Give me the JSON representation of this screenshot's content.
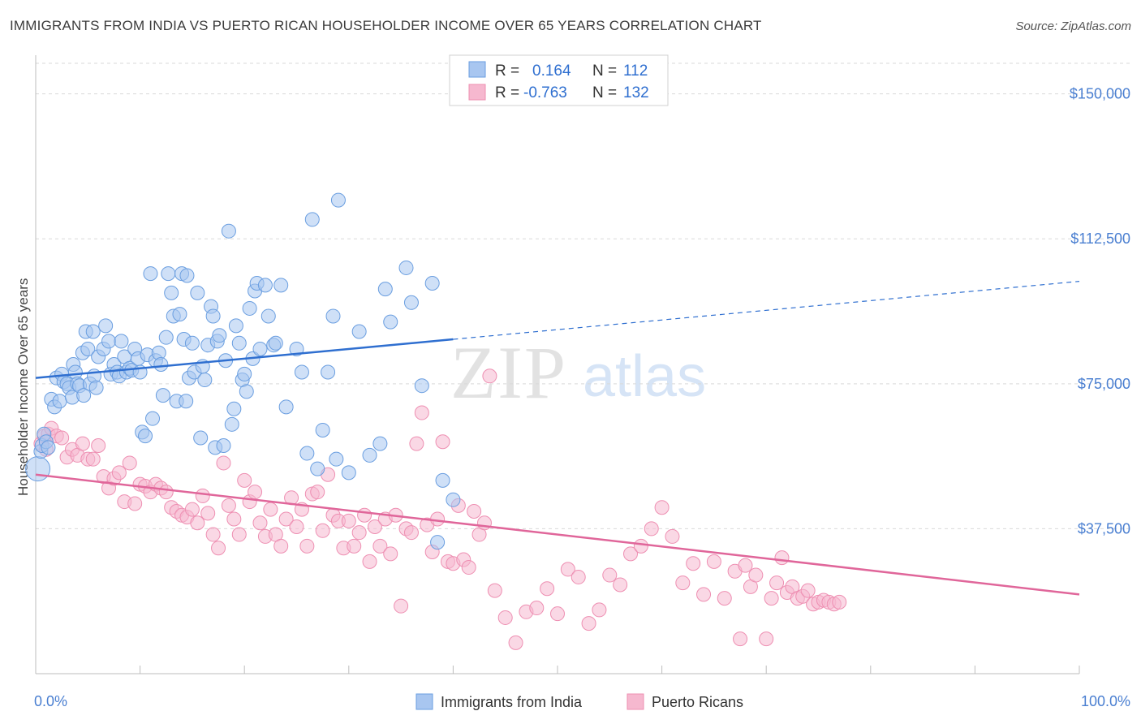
{
  "title": "IMMIGRANTS FROM INDIA VS PUERTO RICAN HOUSEHOLDER INCOME OVER 65 YEARS CORRELATION CHART",
  "source": "Source: ZipAtlas.com",
  "watermark": {
    "zip": "ZIP",
    "atlas": "atlas"
  },
  "legend_top": {
    "rows": [
      {
        "r_label": "R =",
        "r_value": "0.164",
        "n_label": "N =",
        "n_value": "112"
      },
      {
        "r_label": "R =",
        "r_value": "-0.763",
        "n_label": "N =",
        "n_value": "132"
      }
    ]
  },
  "legend_bottom": [
    "Immigrants from India",
    "Puerto Ricans"
  ],
  "colors": {
    "india_fill": "#a8c6f0",
    "india_stroke": "#6a9ee0",
    "india_line": "#2f6fd0",
    "pr_fill": "#f6b8cf",
    "pr_stroke": "#ee8fb2",
    "pr_line": "#e0669a",
    "tick_text": "#4a7fd1",
    "grid": "#d9d9d9"
  },
  "chart_data": {
    "type": "scatter",
    "title": "IMMIGRANTS FROM INDIA VS PUERTO RICAN HOUSEHOLDER INCOME OVER 65 YEARS CORRELATION CHART",
    "xlabel": "",
    "ylabel": "Householder Income Over 65 years",
    "xlim": [
      0,
      100
    ],
    "ylim": [
      0,
      160000
    ],
    "x_tick_labels": [
      "0.0%",
      "100.0%"
    ],
    "y_ticks": [
      37500,
      75000,
      112500,
      150000
    ],
    "y_tick_labels": [
      "$37,500",
      "$75,000",
      "$112,500",
      "$150,000"
    ],
    "grid": true,
    "legend_position": "top-center",
    "series": [
      {
        "name": "Immigrants from India",
        "stats": {
          "R": 0.164,
          "N": 112
        },
        "trend": {
          "x0": 0,
          "y0": 76500,
          "x1": 40,
          "y1": 86500,
          "dashed_to_x": 100,
          "dashed_to_y": 101500
        },
        "points": [
          [
            0.2,
            53000
          ],
          [
            0.5,
            57500
          ],
          [
            0.6,
            59000
          ],
          [
            0.8,
            62000
          ],
          [
            1.0,
            60000
          ],
          [
            1.2,
            58500
          ],
          [
            1.5,
            71000
          ],
          [
            1.8,
            69000
          ],
          [
            2.0,
            76500
          ],
          [
            2.3,
            70500
          ],
          [
            2.5,
            77500
          ],
          [
            2.7,
            75500
          ],
          [
            3.0,
            75000
          ],
          [
            3.2,
            74000
          ],
          [
            3.5,
            71500
          ],
          [
            3.6,
            80000
          ],
          [
            3.8,
            78000
          ],
          [
            4.0,
            75000
          ],
          [
            4.2,
            74500
          ],
          [
            4.5,
            83000
          ],
          [
            4.6,
            72000
          ],
          [
            4.8,
            88500
          ],
          [
            5.0,
            84000
          ],
          [
            5.2,
            75000
          ],
          [
            5.5,
            88500
          ],
          [
            5.6,
            77000
          ],
          [
            5.8,
            74000
          ],
          [
            6.0,
            82000
          ],
          [
            6.5,
            84000
          ],
          [
            6.7,
            90000
          ],
          [
            7.0,
            86000
          ],
          [
            7.2,
            77500
          ],
          [
            7.5,
            80000
          ],
          [
            7.8,
            78000
          ],
          [
            8.0,
            77000
          ],
          [
            8.2,
            86000
          ],
          [
            8.5,
            82000
          ],
          [
            8.7,
            78000
          ],
          [
            9.0,
            79000
          ],
          [
            9.2,
            78500
          ],
          [
            9.5,
            84000
          ],
          [
            9.8,
            81500
          ],
          [
            10.0,
            78000
          ],
          [
            10.2,
            62500
          ],
          [
            10.5,
            61500
          ],
          [
            10.7,
            82500
          ],
          [
            11.0,
            103500
          ],
          [
            11.2,
            66000
          ],
          [
            11.5,
            81000
          ],
          [
            11.8,
            83000
          ],
          [
            12.0,
            80000
          ],
          [
            12.2,
            72000
          ],
          [
            12.5,
            87000
          ],
          [
            12.7,
            103500
          ],
          [
            13.0,
            98500
          ],
          [
            13.2,
            92500
          ],
          [
            13.5,
            70500
          ],
          [
            13.8,
            93000
          ],
          [
            14.0,
            103500
          ],
          [
            14.2,
            86500
          ],
          [
            14.4,
            70500
          ],
          [
            14.5,
            103000
          ],
          [
            14.7,
            76500
          ],
          [
            15.0,
            85500
          ],
          [
            15.2,
            78000
          ],
          [
            15.5,
            98500
          ],
          [
            15.8,
            61000
          ],
          [
            16.0,
            79500
          ],
          [
            16.2,
            76000
          ],
          [
            16.5,
            85000
          ],
          [
            16.8,
            95000
          ],
          [
            17.0,
            92500
          ],
          [
            17.2,
            58500
          ],
          [
            17.4,
            86000
          ],
          [
            17.6,
            87500
          ],
          [
            18.0,
            59000
          ],
          [
            18.2,
            81000
          ],
          [
            18.5,
            114500
          ],
          [
            18.8,
            64500
          ],
          [
            19.0,
            68500
          ],
          [
            19.2,
            90000
          ],
          [
            19.5,
            85500
          ],
          [
            19.8,
            76000
          ],
          [
            20.0,
            77500
          ],
          [
            20.2,
            73000
          ],
          [
            20.5,
            94500
          ],
          [
            20.8,
            81500
          ],
          [
            21.0,
            99000
          ],
          [
            21.2,
            101000
          ],
          [
            21.5,
            84000
          ],
          [
            22.0,
            100500
          ],
          [
            22.3,
            92500
          ],
          [
            22.8,
            85000
          ],
          [
            23.0,
            85500
          ],
          [
            23.5,
            100500
          ],
          [
            24.0,
            69000
          ],
          [
            25.0,
            84000
          ],
          [
            25.5,
            78000
          ],
          [
            26.0,
            57000
          ],
          [
            26.5,
            117500
          ],
          [
            27.0,
            53000
          ],
          [
            27.5,
            63000
          ],
          [
            28.0,
            78000
          ],
          [
            28.5,
            92500
          ],
          [
            28.8,
            55500
          ],
          [
            29.0,
            122500
          ],
          [
            30.0,
            52000
          ],
          [
            31.0,
            88500
          ],
          [
            32.0,
            56500
          ],
          [
            33.0,
            59500
          ],
          [
            33.5,
            99500
          ],
          [
            34.0,
            91000
          ],
          [
            35.5,
            105000
          ],
          [
            36.0,
            96000
          ],
          [
            37.0,
            74500
          ],
          [
            38.0,
            101000
          ],
          [
            39.0,
            50000
          ],
          [
            40.0,
            45000
          ],
          [
            38.5,
            34000
          ]
        ]
      },
      {
        "name": "Puerto Ricans",
        "stats": {
          "R": -0.763,
          "N": 132
        },
        "trend": {
          "x0": 0,
          "y0": 51500,
          "x1": 100,
          "y1": 20500
        },
        "points": [
          [
            0.5,
            59500
          ],
          [
            0.8,
            61500
          ],
          [
            1.0,
            58000
          ],
          [
            1.2,
            62000
          ],
          [
            1.5,
            63500
          ],
          [
            2.0,
            61500
          ],
          [
            2.5,
            61000
          ],
          [
            3.0,
            56000
          ],
          [
            3.5,
            58000
          ],
          [
            4.0,
            56500
          ],
          [
            4.5,
            59500
          ],
          [
            5.0,
            55500
          ],
          [
            5.5,
            55500
          ],
          [
            6.0,
            59000
          ],
          [
            6.5,
            51000
          ],
          [
            7.0,
            48000
          ],
          [
            7.5,
            50500
          ],
          [
            8.0,
            52000
          ],
          [
            8.5,
            44500
          ],
          [
            9.0,
            54500
          ],
          [
            9.5,
            44000
          ],
          [
            10.0,
            49000
          ],
          [
            10.5,
            48500
          ],
          [
            11.0,
            47000
          ],
          [
            11.5,
            49000
          ],
          [
            12.0,
            48000
          ],
          [
            12.5,
            47000
          ],
          [
            13.0,
            43000
          ],
          [
            13.5,
            42000
          ],
          [
            14.0,
            41000
          ],
          [
            14.5,
            40500
          ],
          [
            15.0,
            42500
          ],
          [
            15.5,
            39000
          ],
          [
            16.0,
            46000
          ],
          [
            16.5,
            41500
          ],
          [
            17.0,
            36000
          ],
          [
            17.5,
            32500
          ],
          [
            18.0,
            54500
          ],
          [
            18.5,
            43500
          ],
          [
            19.0,
            40000
          ],
          [
            19.5,
            36000
          ],
          [
            20.0,
            50000
          ],
          [
            20.5,
            44500
          ],
          [
            21.0,
            47000
          ],
          [
            21.5,
            39000
          ],
          [
            22.0,
            35500
          ],
          [
            22.5,
            42500
          ],
          [
            23.0,
            36000
          ],
          [
            23.5,
            33000
          ],
          [
            24.0,
            40000
          ],
          [
            24.5,
            45500
          ],
          [
            25.0,
            38000
          ],
          [
            25.5,
            42500
          ],
          [
            26.0,
            33000
          ],
          [
            26.5,
            46500
          ],
          [
            27.0,
            47000
          ],
          [
            27.5,
            37000
          ],
          [
            28.0,
            51500
          ],
          [
            28.5,
            41000
          ],
          [
            29.0,
            39500
          ],
          [
            29.5,
            32500
          ],
          [
            30.0,
            39500
          ],
          [
            30.5,
            33000
          ],
          [
            31.0,
            36500
          ],
          [
            31.5,
            41000
          ],
          [
            32.0,
            29000
          ],
          [
            32.5,
            38000
          ],
          [
            33.0,
            33000
          ],
          [
            33.5,
            40000
          ],
          [
            34.0,
            31000
          ],
          [
            34.5,
            41000
          ],
          [
            35.0,
            17500
          ],
          [
            35.5,
            37500
          ],
          [
            36.0,
            36500
          ],
          [
            36.5,
            59500
          ],
          [
            37.0,
            67500
          ],
          [
            37.5,
            38500
          ],
          [
            38.0,
            31500
          ],
          [
            38.5,
            40000
          ],
          [
            39.0,
            60000
          ],
          [
            39.5,
            29000
          ],
          [
            40.0,
            28500
          ],
          [
            40.5,
            43500
          ],
          [
            41.0,
            29500
          ],
          [
            41.5,
            27500
          ],
          [
            42.0,
            42000
          ],
          [
            42.5,
            36000
          ],
          [
            43.0,
            39000
          ],
          [
            43.5,
            77000
          ],
          [
            44.0,
            21500
          ],
          [
            45.0,
            14500
          ],
          [
            46.0,
            8000
          ],
          [
            47.0,
            16000
          ],
          [
            48.0,
            17000
          ],
          [
            49.0,
            22000
          ],
          [
            50.0,
            15500
          ],
          [
            51.0,
            27000
          ],
          [
            52.0,
            25000
          ],
          [
            53.0,
            13000
          ],
          [
            54.0,
            16500
          ],
          [
            55.0,
            25500
          ],
          [
            56.0,
            23000
          ],
          [
            57.0,
            31000
          ],
          [
            58.0,
            33000
          ],
          [
            59.0,
            37500
          ],
          [
            60.0,
            43000
          ],
          [
            61.0,
            35500
          ],
          [
            62.0,
            23500
          ],
          [
            63.0,
            28500
          ],
          [
            64.0,
            20500
          ],
          [
            65.0,
            29000
          ],
          [
            66.0,
            19500
          ],
          [
            67.0,
            26500
          ],
          [
            67.5,
            9000
          ],
          [
            68.0,
            28000
          ],
          [
            68.5,
            22500
          ],
          [
            69.0,
            25500
          ],
          [
            70.0,
            9000
          ],
          [
            70.5,
            19500
          ],
          [
            71.0,
            23500
          ],
          [
            71.5,
            30000
          ],
          [
            72.0,
            21000
          ],
          [
            72.5,
            22500
          ],
          [
            73.0,
            19500
          ],
          [
            73.5,
            20000
          ],
          [
            74.0,
            21500
          ],
          [
            74.5,
            18000
          ],
          [
            75.0,
            18500
          ],
          [
            75.5,
            19000
          ],
          [
            76.0,
            18500
          ],
          [
            76.5,
            18000
          ],
          [
            77.0,
            18500
          ]
        ]
      }
    ]
  }
}
